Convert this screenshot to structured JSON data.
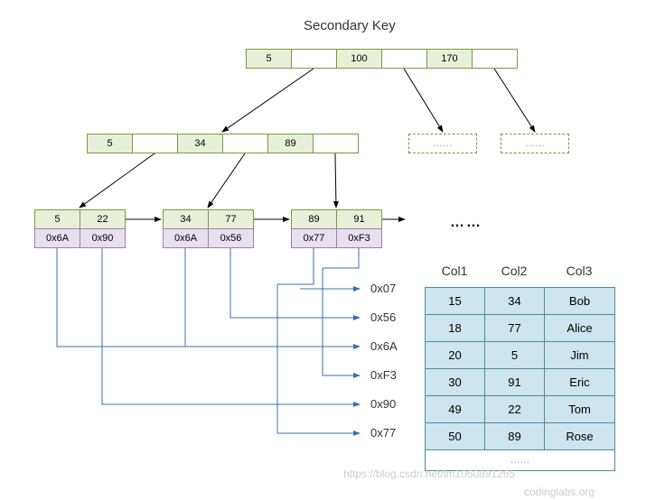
{
  "title": "Secondary Key",
  "colors": {
    "green_border": "#7a9b3e",
    "green_fill": "#e8f0d8",
    "purple_border": "#9b7eb5",
    "purple_fill": "#e8e0ef",
    "teal_border": "#4a8ca0",
    "teal_fill": "#cde5ec",
    "arrow_black": "#000000",
    "arrow_blue": "#3b6fb5",
    "background": "#ffffff"
  },
  "root": {
    "cells": [
      "5",
      "",
      "100",
      "",
      "170",
      ""
    ]
  },
  "mid": {
    "cells": [
      "5",
      "",
      "34",
      "",
      "89",
      ""
    ]
  },
  "mid_dashed": [
    "……",
    "……"
  ],
  "leaves": [
    {
      "keys": [
        "5",
        "22"
      ],
      "ptrs": [
        "0x6A",
        "0x90"
      ]
    },
    {
      "keys": [
        "34",
        "77"
      ],
      "ptrs": [
        "0x6A",
        "0x56"
      ]
    },
    {
      "keys": [
        "89",
        "91"
      ],
      "ptrs": [
        "0x77",
        "0xF3"
      ]
    }
  ],
  "leaf_ellipsis": "……",
  "addresses": [
    "0x07",
    "0x56",
    "0x6A",
    "0xF3",
    "0x90",
    "0x77"
  ],
  "table": {
    "headers": [
      "Col1",
      "Col2",
      "Col3"
    ],
    "rows": [
      [
        "15",
        "34",
        "Bob"
      ],
      [
        "18",
        "77",
        "Alice"
      ],
      [
        "20",
        "5",
        "Jim"
      ],
      [
        "30",
        "91",
        "Eric"
      ],
      [
        "49",
        "22",
        "Tom"
      ],
      [
        "50",
        "89",
        "Rose"
      ]
    ],
    "footer": "……"
  },
  "watermark1": "https://blog.csdn.net/lm1060891265",
  "watermark2": "codinglabs.org"
}
